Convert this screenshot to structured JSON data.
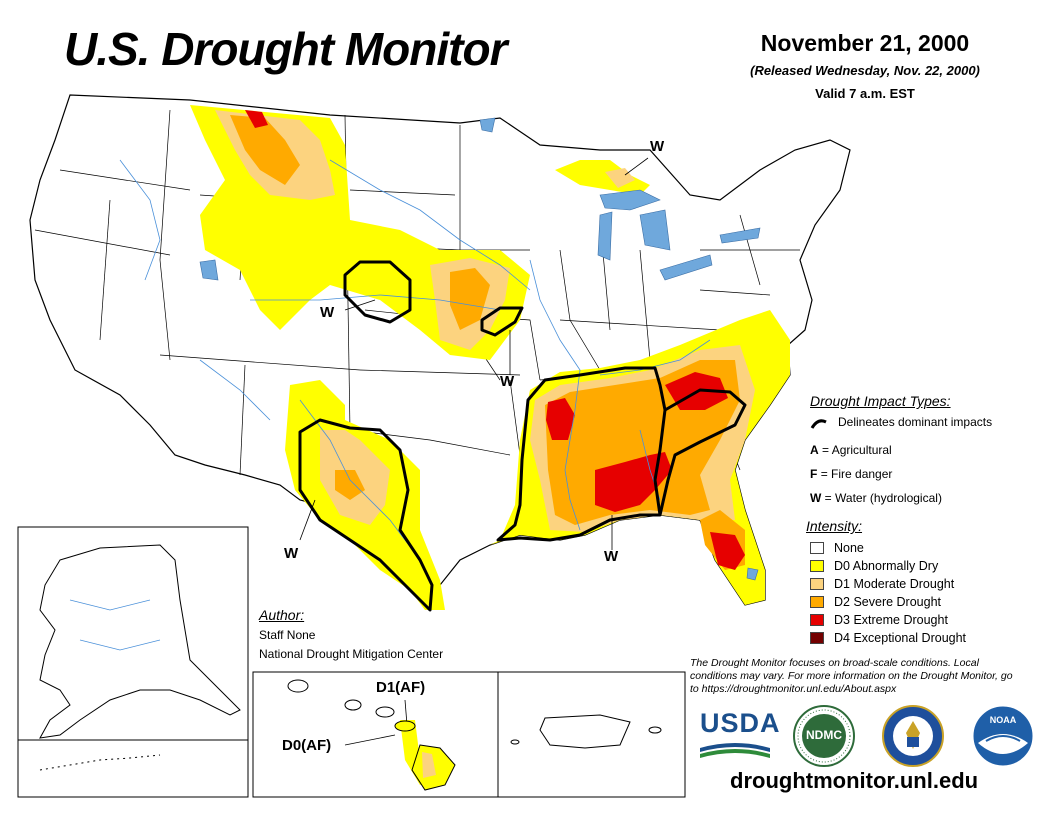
{
  "title": "U.S. Drought Monitor",
  "date": "November 21, 2000",
  "released": "(Released Wednesday, Nov. 22, 2000)",
  "valid": "Valid 7 a.m. EST",
  "impact_types": {
    "title": "Drought Impact Types:",
    "delineates": "Delineates dominant impacts",
    "items": [
      {
        "code": "A",
        "label": "= Agricultural"
      },
      {
        "code": "F",
        "label": "= Fire danger"
      },
      {
        "code": "W",
        "label": "= Water (hydrological)"
      }
    ]
  },
  "intensity": {
    "title": "Intensity:",
    "items": [
      {
        "label": "None",
        "color": "#ffffff"
      },
      {
        "label": "D0 Abnormally Dry",
        "color": "#ffff00"
      },
      {
        "label": "D1 Moderate Drought",
        "color": "#fcd37f"
      },
      {
        "label": "D2 Severe Drought",
        "color": "#ffaa00"
      },
      {
        "label": "D3 Extreme Drought",
        "color": "#e60000"
      },
      {
        "label": "D4 Exceptional Drought",
        "color": "#730000"
      }
    ]
  },
  "author": {
    "title": "Author:",
    "name": "Staff None",
    "org": "National Drought Mitigation Center"
  },
  "note": "The Drought Monitor focuses on broad-scale conditions. Local conditions may vary. For more information on the Drought Monitor, go to https://droughtmonitor.unl.edu/About.aspx",
  "url": "droughtmonitor.unl.edu",
  "map_labels": {
    "w_northmi": "W",
    "w_nebraska": "W",
    "w_iowa": "W",
    "w_texas": "W",
    "w_gulf": "W",
    "hawaii_d1": "D1(AF)",
    "hawaii_d0": "D0(AF)"
  },
  "logos": {
    "usda": "USDA",
    "ndmc": "NDMC",
    "noaa": "NOAA"
  },
  "colors": {
    "d0": "#ffff00",
    "d1": "#fcd37f",
    "d2": "#ffaa00",
    "d3": "#e60000",
    "d4": "#730000",
    "water": "#6fa8dc",
    "usda_blue": "#1b4f8c",
    "ndmc_green": "#2e6b3a",
    "noaa_blue": "#1f5fa8"
  }
}
